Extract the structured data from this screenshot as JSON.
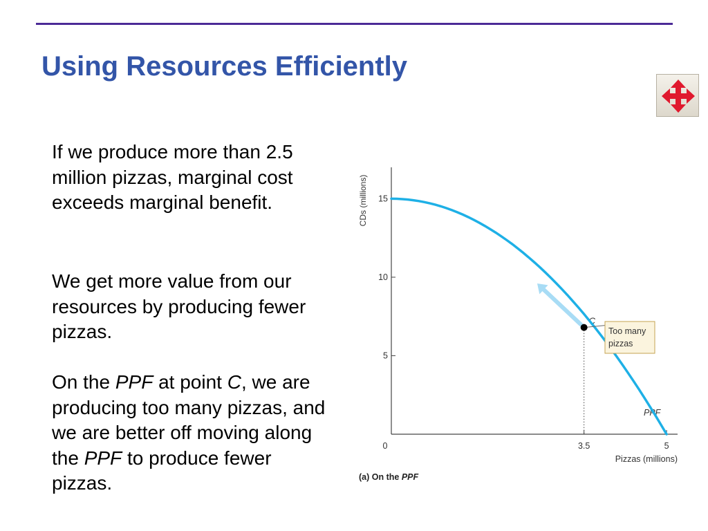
{
  "slide": {
    "title": "Using Resources Efficiently",
    "title_color": "#3355a8",
    "rule_color": "#4b2a96",
    "paragraph1": "If we produce more than 2.5 million pizzas, marginal cost exceeds marginal benefit.",
    "paragraph2": "We get more value from our resources by producing fewer pizzas.",
    "paragraph3": {
      "t1": "On the ",
      "t2": "PPF",
      "t3": " at point ",
      "t4": "C",
      "t5": ", we are producing too many pizzas, and we are better off moving along the ",
      "t6": "PPF",
      "t7": " to produce fewer pizzas."
    },
    "nav_icon": "move-arrows-icon",
    "nav_icon_color": "#e0192e"
  },
  "chart_data": {
    "type": "line",
    "series": [
      {
        "name": "PPF",
        "x": [
          0,
          1,
          2,
          3,
          3.5,
          4,
          5
        ],
        "y": [
          15,
          14,
          12,
          9,
          6.8,
          4,
          0
        ]
      }
    ],
    "xlabel": "Pizzas (millions)",
    "ylabel": "CDs (millions)",
    "xlim": [
      0,
      5.2
    ],
    "ylim": [
      0,
      17
    ],
    "x_ticks": [
      {
        "value": 0,
        "label": "0"
      },
      {
        "value": 3.5,
        "label": "3.5"
      },
      {
        "value": 5,
        "label": "5"
      }
    ],
    "y_ticks": [
      {
        "value": 5,
        "label": "5"
      },
      {
        "value": 10,
        "label": "10"
      },
      {
        "value": 15,
        "label": "15"
      }
    ],
    "point": {
      "label": "C",
      "x": 3.5,
      "y": 6.8
    },
    "annotation": "Too many pizzas",
    "curve_label": "PPF",
    "arrow": {
      "from": {
        "x": 3.5,
        "y": 6.8
      },
      "to": {
        "x": 2.65,
        "y": 9.6
      }
    },
    "caption": {
      "prefix": "(a) On the ",
      "emph": "PPF"
    },
    "grid": false,
    "colors": {
      "curve": "#1eb0e6",
      "arrow": "#a8dcf5",
      "callout_bg": "#fbf4de",
      "callout_border": "#c4a352"
    }
  }
}
